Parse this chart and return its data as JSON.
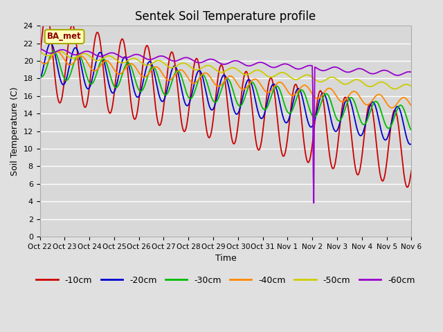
{
  "title": "Sentek Soil Temperature profile",
  "xlabel": "Time",
  "ylabel": "Soil Temperature (C)",
  "ylim": [
    0,
    24
  ],
  "yticks": [
    0,
    2,
    4,
    6,
    8,
    10,
    12,
    14,
    16,
    18,
    20,
    22,
    24
  ],
  "x_labels": [
    "Oct 22",
    "Oct 23",
    "Oct 24",
    "Oct 25",
    "Oct 26",
    "Oct 27",
    "Oct 28",
    "Oct 29",
    "Oct 30",
    "Oct 31",
    "Nov 1",
    "Nov 2",
    "Nov 3",
    "Nov 4",
    "Nov 5",
    "Nov 6"
  ],
  "annotation_text": "BA_met",
  "fig_bg_color": "#e0e0e0",
  "plot_bg_color": "#d8d8d8",
  "grid_color": "#ffffff",
  "colors": {
    "-10cm": "#cc0000",
    "-20cm": "#0000cc",
    "-30cm": "#00bb00",
    "-40cm": "#ff8800",
    "-50cm": "#cccc00",
    "-60cm": "#9900cc"
  },
  "lw": 1.3
}
